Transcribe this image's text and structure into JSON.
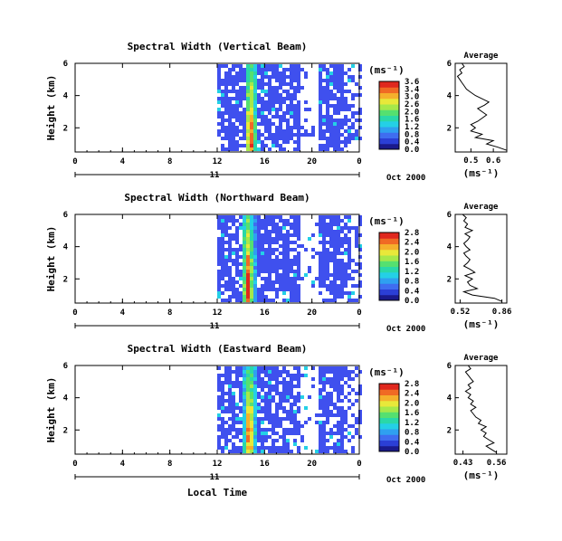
{
  "xlabel": "Local Time",
  "colors": {
    "cmap": [
      "#1a1a8c",
      "#2b3fd6",
      "#3f6df0",
      "#2fa0f0",
      "#24d0e6",
      "#2ad8a8",
      "#55e070",
      "#a6e84a",
      "#e8e83a",
      "#f5b02c",
      "#f06a24",
      "#e0281e"
    ],
    "echo": "#3f50ee",
    "background": "#ffffff"
  },
  "chart_data": [
    {
      "type": "heatmap",
      "title": "Spectral Width (Vertical Beam)",
      "ylabel": "Height (km)",
      "x_ticks": [
        "0",
        "4",
        "8",
        "12",
        "16",
        "20",
        "0"
      ],
      "date_label": "11",
      "date_suffix": "Oct 2000",
      "xlim": [
        0,
        24
      ],
      "ylim": [
        0.5,
        6
      ],
      "y_ticks": [
        "6",
        "4",
        "2"
      ],
      "colorbar": {
        "unit": "(ms⁻¹)",
        "ticks": [
          "3.6",
          "3.4",
          "3.0",
          "2.6",
          "2.0",
          "1.6",
          "1.2",
          "0.8",
          "0.4",
          "0.0"
        ]
      },
      "data_coverage": [
        {
          "start_hour": 12.0,
          "end_hour": 24.0
        }
      ],
      "peak_band": {
        "hour": 14.6,
        "max_width": 3.6
      },
      "average": {
        "title": "Average",
        "xlabel": "(ms⁻¹)",
        "x_ticks": [
          "0.5",
          "0.6"
        ],
        "xlim": [
          0.43,
          0.66
        ],
        "y_ticks": [
          "6",
          "4",
          "2"
        ],
        "height_km": [
          0.6,
          0.8,
          1.0,
          1.2,
          1.4,
          1.6,
          1.8,
          2.0,
          2.2,
          2.4,
          2.6,
          2.8,
          3.0,
          3.2,
          3.4,
          3.6,
          3.8,
          4.0,
          4.2,
          4.4,
          4.6,
          4.8,
          5.0,
          5.2,
          5.4,
          5.6,
          5.8,
          6.0
        ],
        "width_ms": [
          0.66,
          0.62,
          0.57,
          0.6,
          0.52,
          0.55,
          0.5,
          0.52,
          0.5,
          0.53,
          0.55,
          0.57,
          0.55,
          0.53,
          0.56,
          0.58,
          0.55,
          0.52,
          0.5,
          0.48,
          0.47,
          0.46,
          0.45,
          0.44,
          0.46,
          0.45,
          0.47,
          0.46
        ]
      }
    },
    {
      "type": "heatmap",
      "title": "Spectral Width (Northward Beam)",
      "ylabel": "Height (km)",
      "x_ticks": [
        "0",
        "4",
        "8",
        "12",
        "16",
        "20",
        "0"
      ],
      "date_label": "11",
      "date_suffix": "Oct 2000",
      "xlim": [
        0,
        24
      ],
      "ylim": [
        0.5,
        6
      ],
      "y_ticks": [
        "6",
        "4",
        "2"
      ],
      "colorbar": {
        "unit": "(ms⁻¹)",
        "ticks": [
          "2.8",
          "2.4",
          "2.0",
          "1.6",
          "1.2",
          "0.8",
          "0.4",
          "0.0"
        ]
      },
      "data_coverage": [
        {
          "start_hour": 12.0,
          "end_hour": 24.0
        }
      ],
      "peak_band": {
        "hour": 14.4,
        "max_width": 2.8
      },
      "average": {
        "title": "Average",
        "xlabel": "(ms⁻¹)",
        "x_ticks": [
          "0.52",
          "0.86"
        ],
        "xlim": [
          0.48,
          0.9
        ],
        "y_ticks": [
          "6",
          "4",
          "2"
        ],
        "height_km": [
          0.6,
          0.8,
          1.0,
          1.2,
          1.4,
          1.6,
          1.8,
          2.0,
          2.2,
          2.4,
          2.6,
          2.8,
          3.0,
          3.2,
          3.4,
          3.6,
          3.8,
          4.0,
          4.2,
          4.4,
          4.6,
          4.8,
          5.0,
          5.2,
          5.4,
          5.6,
          5.8,
          6.0
        ],
        "width_ms": [
          0.86,
          0.8,
          0.62,
          0.55,
          0.66,
          0.6,
          0.58,
          0.62,
          0.56,
          0.64,
          0.6,
          0.55,
          0.58,
          0.6,
          0.57,
          0.55,
          0.6,
          0.57,
          0.55,
          0.58,
          0.6,
          0.56,
          0.62,
          0.56,
          0.58,
          0.55,
          0.57,
          0.54
        ]
      }
    },
    {
      "type": "heatmap",
      "title": "Spectral Width (Eastward Beam)",
      "ylabel": "Height (km)",
      "x_ticks": [
        "0",
        "4",
        "8",
        "12",
        "16",
        "20",
        "0"
      ],
      "date_label": "11",
      "date_suffix": "Oct 2000",
      "xlim": [
        0,
        24
      ],
      "ylim": [
        0.5,
        6
      ],
      "y_ticks": [
        "6",
        "4",
        "2"
      ],
      "colorbar": {
        "unit": "(ms⁻¹)",
        "ticks": [
          "2.8",
          "2.4",
          "2.0",
          "1.6",
          "1.2",
          "0.8",
          "0.4",
          "0.0"
        ]
      },
      "data_coverage": [
        {
          "start_hour": 12.0,
          "end_hour": 24.0
        }
      ],
      "peak_band": {
        "hour": 14.5,
        "max_width": 2.8
      },
      "average": {
        "title": "Average",
        "xlabel": "(ms⁻¹)",
        "x_ticks": [
          "0.43",
          "0.56"
        ],
        "xlim": [
          0.4,
          0.6
        ],
        "y_ticks": [
          "6",
          "4",
          "2"
        ],
        "height_km": [
          0.6,
          0.8,
          1.0,
          1.2,
          1.4,
          1.6,
          1.8,
          2.0,
          2.2,
          2.4,
          2.6,
          2.8,
          3.0,
          3.2,
          3.4,
          3.6,
          3.8,
          4.0,
          4.2,
          4.4,
          4.6,
          4.8,
          5.0,
          5.2,
          5.4,
          5.6,
          5.8,
          6.0
        ],
        "width_ms": [
          0.56,
          0.54,
          0.52,
          0.55,
          0.53,
          0.51,
          0.52,
          0.5,
          0.52,
          0.49,
          0.5,
          0.48,
          0.47,
          0.46,
          0.48,
          0.46,
          0.47,
          0.45,
          0.46,
          0.44,
          0.46,
          0.45,
          0.47,
          0.46,
          0.45,
          0.44,
          0.46,
          0.45
        ]
      }
    }
  ]
}
